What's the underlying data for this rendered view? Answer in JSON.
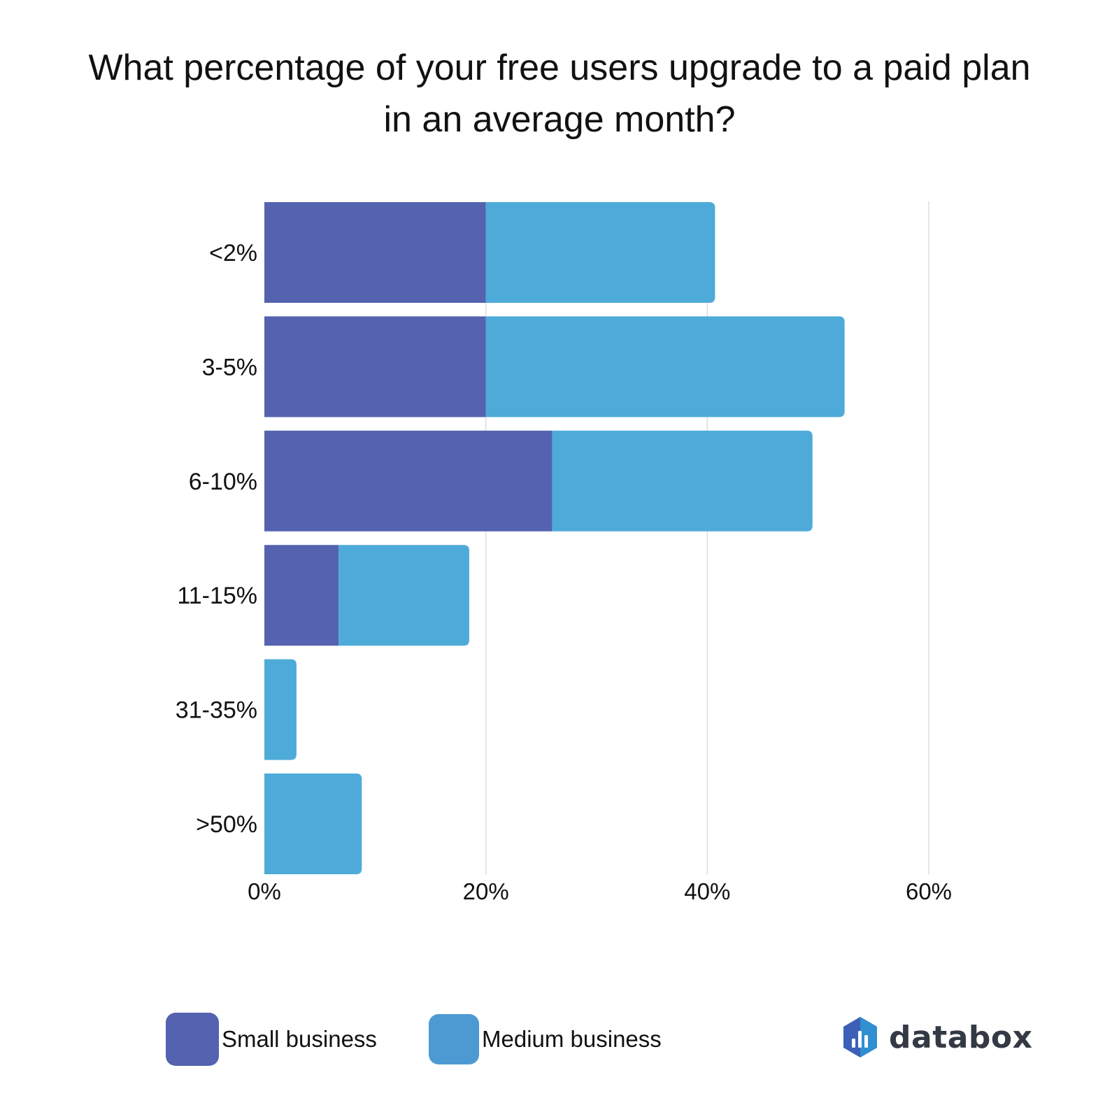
{
  "chart_data": {
    "type": "bar",
    "orientation": "horizontal",
    "stacked": true,
    "title": "What percentage of your free users upgrade to a paid plan in an average month?",
    "categories": [
      "<2%",
      "3-5%",
      "6-10%",
      "11-15%",
      "31-35%",
      ">50%"
    ],
    "series": [
      {
        "name": "Small business",
        "color": "#5462b0",
        "values": [
          20,
          20,
          26,
          6.7,
          0,
          0
        ]
      },
      {
        "name": "Medium business",
        "color": "#4eabd9",
        "values": [
          20.7,
          32.4,
          23.5,
          11.8,
          2.9,
          8.8
        ]
      }
    ],
    "xlim": [
      0,
      60
    ],
    "xticks": [
      "0%",
      "20%",
      "40%",
      "60%"
    ],
    "xtick_values": [
      0,
      20,
      40,
      60
    ],
    "grid": true,
    "legend_position": "bottom-left"
  },
  "legend": {
    "small": {
      "label": "Small business",
      "color": "#5462b0"
    },
    "medium": {
      "label": "Medium business",
      "color": "#4d9ad3"
    }
  },
  "logo": {
    "text": "databox"
  }
}
